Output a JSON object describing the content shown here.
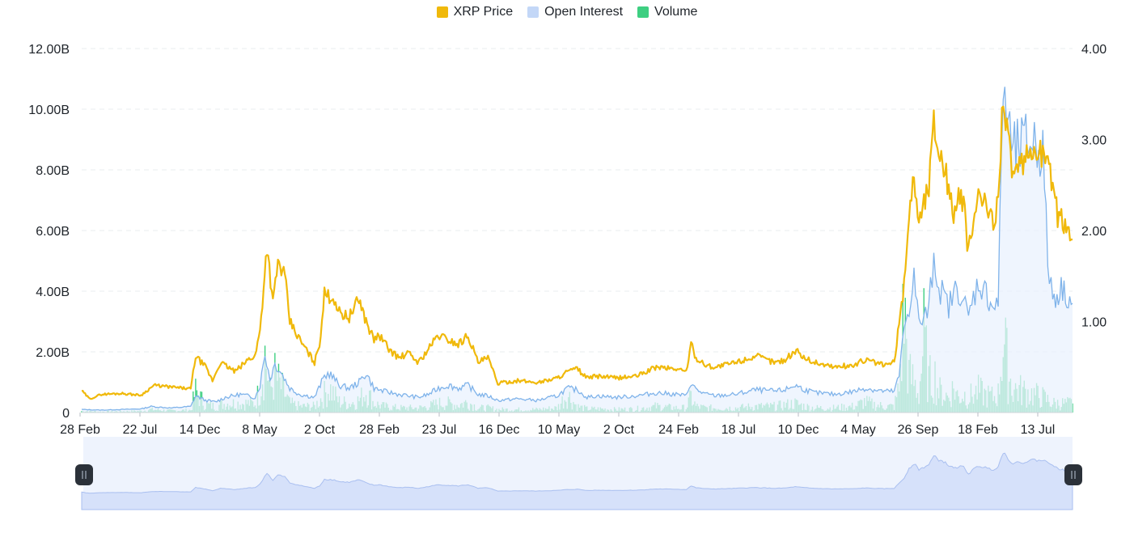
{
  "legend": {
    "price": {
      "label": "XRP Price",
      "color": "#F0B90B"
    },
    "oi": {
      "label": "Open Interest",
      "color": "#C3D7F7"
    },
    "volume": {
      "label": "Volume",
      "color": "#3ECF81"
    }
  },
  "chart_data": {
    "type": "line",
    "x_tick_labels": [
      "28 Feb",
      "22 Jul",
      "14 Dec",
      "8 May",
      "2 Oct",
      "28 Feb",
      "23 Jul",
      "16 Dec",
      "10 May",
      "2 Oct",
      "24 Feb",
      "18 Jul",
      "10 Dec",
      "4 May",
      "26 Sep",
      "18 Feb",
      "13 Jul"
    ],
    "y_left": {
      "ticks": [
        "0",
        "2.00B",
        "4.00B",
        "6.00B",
        "8.00B",
        "10.00B",
        "12.00B"
      ],
      "range": [
        0,
        12000000000
      ]
    },
    "y_right": {
      "ticks": [
        "1.00",
        "2.00",
        "3.00",
        "4.00"
      ],
      "range": [
        0,
        4
      ]
    },
    "grid": true,
    "legend_position": "top-center",
    "x_range": [
      0,
      100
    ],
    "series": [
      {
        "name": "XRP Price",
        "axis": "right",
        "color": "#F0B90B",
        "points": [
          [
            0,
            0.24
          ],
          [
            0.8,
            0.15
          ],
          [
            2,
            0.2
          ],
          [
            4,
            0.21
          ],
          [
            6,
            0.19
          ],
          [
            7.3,
            0.3
          ],
          [
            9,
            0.28
          ],
          [
            11,
            0.26
          ],
          [
            11.5,
            0.62
          ],
          [
            12.5,
            0.5
          ],
          [
            13.2,
            0.35
          ],
          [
            14,
            0.55
          ],
          [
            15.5,
            0.45
          ],
          [
            17,
            0.6
          ],
          [
            17.5,
            0.62
          ],
          [
            18,
            0.9
          ],
          [
            18.7,
            1.84
          ],
          [
            19.3,
            1.2
          ],
          [
            19.8,
            1.65
          ],
          [
            20.5,
            1.5
          ],
          [
            21,
            1.0
          ],
          [
            22,
            0.8
          ],
          [
            23.5,
            0.55
          ],
          [
            24,
            0.75
          ],
          [
            24.5,
            1.3
          ],
          [
            25.5,
            1.25
          ],
          [
            26,
            1.1
          ],
          [
            27,
            1.05
          ],
          [
            28,
            1.25
          ],
          [
            28.7,
            1.0
          ],
          [
            29.5,
            0.8
          ],
          [
            30,
            0.85
          ],
          [
            31,
            0.7
          ],
          [
            32,
            0.6
          ],
          [
            33,
            0.65
          ],
          [
            34,
            0.55
          ],
          [
            35,
            0.7
          ],
          [
            36,
            0.85
          ],
          [
            37,
            0.8
          ],
          [
            38,
            0.75
          ],
          [
            39,
            0.85
          ],
          [
            40,
            0.55
          ],
          [
            41,
            0.6
          ],
          [
            42,
            0.32
          ],
          [
            44,
            0.35
          ],
          [
            46,
            0.33
          ],
          [
            48,
            0.38
          ],
          [
            49,
            0.45
          ],
          [
            50,
            0.48
          ],
          [
            51,
            0.38
          ],
          [
            52,
            0.4
          ],
          [
            54,
            0.38
          ],
          [
            56,
            0.4
          ],
          [
            58,
            0.5
          ],
          [
            60,
            0.48
          ],
          [
            61,
            0.45
          ],
          [
            61.5,
            0.75
          ],
          [
            62,
            0.6
          ],
          [
            63,
            0.52
          ],
          [
            64,
            0.5
          ],
          [
            66,
            0.55
          ],
          [
            68,
            0.62
          ],
          [
            70,
            0.55
          ],
          [
            71,
            0.58
          ],
          [
            72,
            0.68
          ],
          [
            73,
            0.6
          ],
          [
            74,
            0.55
          ],
          [
            76,
            0.5
          ],
          [
            78,
            0.52
          ],
          [
            79,
            0.58
          ],
          [
            80,
            0.55
          ],
          [
            81,
            0.52
          ],
          [
            82,
            0.55
          ],
          [
            83,
            1.4
          ],
          [
            83.5,
            2.2
          ],
          [
            84,
            2.6
          ],
          [
            84.5,
            2.1
          ],
          [
            85,
            2.3
          ],
          [
            85.5,
            2.5
          ],
          [
            86,
            3.2
          ],
          [
            86.5,
            2.9
          ],
          [
            87,
            2.75
          ],
          [
            87.5,
            2.45
          ],
          [
            88,
            2.2
          ],
          [
            88.5,
            2.35
          ],
          [
            89,
            2.3
          ],
          [
            89.5,
            1.75
          ],
          [
            90,
            2.1
          ],
          [
            90.5,
            2.4
          ],
          [
            91,
            2.3
          ],
          [
            92,
            2.1
          ],
          [
            92.5,
            2.35
          ],
          [
            93,
            3.55
          ],
          [
            93.5,
            3.0
          ],
          [
            94,
            2.6
          ],
          [
            95,
            2.7
          ],
          [
            96,
            2.9
          ],
          [
            97,
            2.85
          ],
          [
            98,
            2.55
          ],
          [
            98.5,
            2.15
          ],
          [
            99,
            2.1
          ],
          [
            99.5,
            2.05
          ],
          [
            100,
            1.9
          ]
        ]
      },
      {
        "name": "Open Interest",
        "axis": "left",
        "color": "#C3D7F7",
        "points": [
          [
            0,
            0.1
          ],
          [
            2,
            0.08
          ],
          [
            4,
            0.1
          ],
          [
            6,
            0.12
          ],
          [
            7,
            0.2
          ],
          [
            9,
            0.15
          ],
          [
            11,
            0.2
          ],
          [
            11.5,
            0.55
          ],
          [
            12.5,
            0.4
          ],
          [
            13.5,
            0.35
          ],
          [
            14.5,
            0.5
          ],
          [
            16,
            0.6
          ],
          [
            17.5,
            0.5
          ],
          [
            18,
            0.9
          ],
          [
            18.5,
            1.95
          ],
          [
            19,
            1.1
          ],
          [
            19.5,
            1.6
          ],
          [
            20,
            1.4
          ],
          [
            21,
            0.8
          ],
          [
            22,
            0.6
          ],
          [
            23.5,
            0.5
          ],
          [
            24.5,
            1.2
          ],
          [
            25,
            1.3
          ],
          [
            26,
            0.9
          ],
          [
            27,
            0.8
          ],
          [
            28,
            1.0
          ],
          [
            28.7,
            1.3
          ],
          [
            29.5,
            0.8
          ],
          [
            30.5,
            0.7
          ],
          [
            32,
            0.6
          ],
          [
            34,
            0.5
          ],
          [
            35,
            0.6
          ],
          [
            36,
            0.8
          ],
          [
            37,
            0.9
          ],
          [
            38,
            0.8
          ],
          [
            39,
            0.9
          ],
          [
            40,
            0.6
          ],
          [
            41,
            0.55
          ],
          [
            42,
            0.4
          ],
          [
            44,
            0.45
          ],
          [
            46,
            0.4
          ],
          [
            48,
            0.55
          ],
          [
            49,
            0.8
          ],
          [
            50,
            0.75
          ],
          [
            51,
            0.5
          ],
          [
            52,
            0.55
          ],
          [
            54,
            0.5
          ],
          [
            56,
            0.55
          ],
          [
            58,
            0.65
          ],
          [
            60,
            0.6
          ],
          [
            61,
            0.55
          ],
          [
            61.5,
            1.0
          ],
          [
            62,
            0.75
          ],
          [
            63,
            0.6
          ],
          [
            64,
            0.55
          ],
          [
            66,
            0.6
          ],
          [
            68,
            0.75
          ],
          [
            70,
            0.7
          ],
          [
            71,
            0.75
          ],
          [
            72,
            0.9
          ],
          [
            73,
            0.75
          ],
          [
            74,
            0.65
          ],
          [
            76,
            0.6
          ],
          [
            78,
            0.7
          ],
          [
            79,
            0.8
          ],
          [
            80,
            0.75
          ],
          [
            81,
            0.7
          ],
          [
            82,
            0.7
          ],
          [
            82.5,
            1.2
          ],
          [
            83,
            2.8
          ],
          [
            83.5,
            3.5
          ],
          [
            84,
            4.5
          ],
          [
            84.5,
            2.9
          ],
          [
            85,
            3.1
          ],
          [
            85.5,
            3.4
          ],
          [
            86,
            5.2
          ],
          [
            86.5,
            4.2
          ],
          [
            87,
            3.8
          ],
          [
            87.5,
            3.5
          ],
          [
            88,
            3.9
          ],
          [
            88.5,
            4.1
          ],
          [
            89,
            3.7
          ],
          [
            89.5,
            3.1
          ],
          [
            90,
            3.8
          ],
          [
            90.5,
            4.3
          ],
          [
            91,
            4.1
          ],
          [
            92,
            3.5
          ],
          [
            92.5,
            3.6
          ],
          [
            93,
            10.9
          ],
          [
            93.5,
            9.5
          ],
          [
            94,
            8.5
          ],
          [
            95,
            8.8
          ],
          [
            96,
            9.0
          ],
          [
            97,
            8.6
          ],
          [
            97.5,
            5.0
          ],
          [
            98,
            3.8
          ],
          [
            99,
            4.1
          ],
          [
            100,
            3.6
          ]
        ]
      },
      {
        "name": "Volume",
        "axis": "left",
        "color": "#3ECF81",
        "points": [
          [
            0,
            0.05
          ],
          [
            2,
            0.03
          ],
          [
            4,
            0.04
          ],
          [
            6,
            0.05
          ],
          [
            7,
            0.1
          ],
          [
            9,
            0.06
          ],
          [
            11,
            0.08
          ],
          [
            11.5,
            0.7
          ],
          [
            12.5,
            0.25
          ],
          [
            13.5,
            0.2
          ],
          [
            14.5,
            0.3
          ],
          [
            16,
            0.3
          ],
          [
            17.5,
            0.3
          ],
          [
            18,
            0.8
          ],
          [
            18.5,
            1.9
          ],
          [
            19,
            0.7
          ],
          [
            19.5,
            1.2
          ],
          [
            20,
            0.9
          ],
          [
            21,
            0.3
          ],
          [
            22,
            0.2
          ],
          [
            23.5,
            0.2
          ],
          [
            24.5,
            0.6
          ],
          [
            25,
            0.8
          ],
          [
            26,
            0.35
          ],
          [
            27,
            0.3
          ],
          [
            28,
            0.4
          ],
          [
            28.7,
            0.7
          ],
          [
            29.5,
            0.3
          ],
          [
            30.5,
            0.2
          ],
          [
            32,
            0.15
          ],
          [
            34,
            0.15
          ],
          [
            35,
            0.2
          ],
          [
            36,
            0.3
          ],
          [
            37,
            0.3
          ],
          [
            38,
            0.25
          ],
          [
            39,
            0.35
          ],
          [
            40,
            0.15
          ],
          [
            41,
            0.15
          ],
          [
            42,
            0.1
          ],
          [
            44,
            0.1
          ],
          [
            46,
            0.1
          ],
          [
            48,
            0.15
          ],
          [
            49,
            0.6
          ],
          [
            50,
            0.2
          ],
          [
            51,
            0.12
          ],
          [
            52,
            0.12
          ],
          [
            54,
            0.1
          ],
          [
            56,
            0.12
          ],
          [
            58,
            0.2
          ],
          [
            60,
            0.15
          ],
          [
            61,
            0.15
          ],
          [
            61.5,
            0.5
          ],
          [
            62,
            0.2
          ],
          [
            63,
            0.15
          ],
          [
            64,
            0.15
          ],
          [
            66,
            0.15
          ],
          [
            68,
            0.2
          ],
          [
            70,
            0.2
          ],
          [
            71,
            0.25
          ],
          [
            72,
            0.3
          ],
          [
            73,
            0.2
          ],
          [
            74,
            0.15
          ],
          [
            76,
            0.15
          ],
          [
            78,
            0.2
          ],
          [
            79,
            0.35
          ],
          [
            80,
            0.25
          ],
          [
            81,
            0.2
          ],
          [
            82,
            0.2
          ],
          [
            82.5,
            0.8
          ],
          [
            83,
            3.4
          ],
          [
            83.5,
            1.2
          ],
          [
            84,
            1.0
          ],
          [
            84.5,
            0.6
          ],
          [
            85,
            2.4
          ],
          [
            85.5,
            1.0
          ],
          [
            86,
            1.3
          ],
          [
            86.5,
            0.7
          ],
          [
            87,
            0.6
          ],
          [
            87.5,
            0.5
          ],
          [
            88,
            0.8
          ],
          [
            88.5,
            0.5
          ],
          [
            89,
            0.6
          ],
          [
            89.5,
            0.5
          ],
          [
            90,
            0.6
          ],
          [
            90.5,
            0.7
          ],
          [
            91,
            0.6
          ],
          [
            92,
            0.5
          ],
          [
            92.5,
            0.6
          ],
          [
            93,
            2.5
          ],
          [
            93.5,
            1.3
          ],
          [
            94,
            0.8
          ],
          [
            95,
            0.7
          ],
          [
            96,
            0.6
          ],
          [
            97,
            0.5
          ],
          [
            97.5,
            0.4
          ],
          [
            98,
            0.3
          ],
          [
            99,
            0.3
          ],
          [
            100,
            0.3
          ]
        ]
      }
    ]
  },
  "navigator": {
    "left_handle_icon": "pause-icon",
    "right_handle_icon": "pause-icon",
    "range": [
      0,
      100
    ]
  }
}
